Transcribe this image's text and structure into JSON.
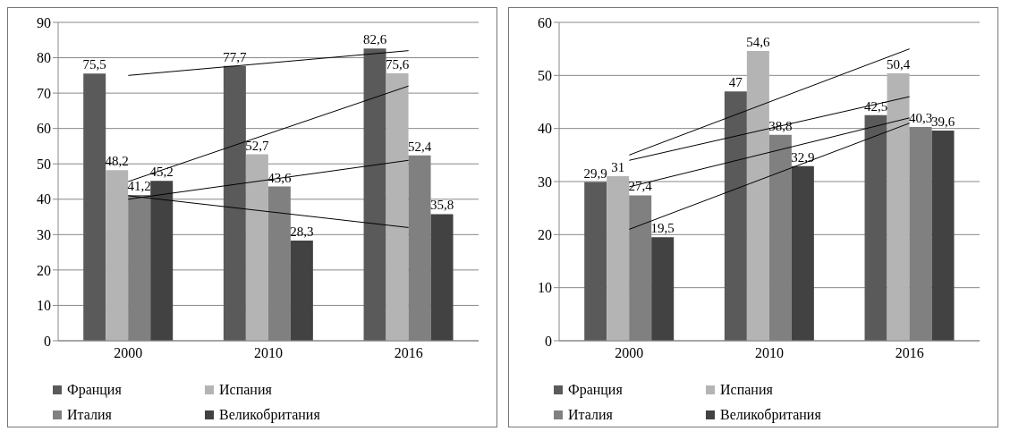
{
  "chart_data": [
    {
      "type": "bar",
      "categories": [
        "2000",
        "2010",
        "2016"
      ],
      "ylim": [
        0,
        90
      ],
      "yticks": [
        0,
        10,
        20,
        30,
        40,
        50,
        60,
        70,
        80,
        90
      ],
      "grid": "y",
      "legend": "bottom",
      "series": [
        {
          "name": "Франция",
          "color": "#5a5a5a",
          "values": [
            75.5,
            77.7,
            82.6
          ],
          "value_labels": [
            "75,5",
            "77,7",
            "82,6"
          ]
        },
        {
          "name": "Испания",
          "color": "#b4b4b4",
          "values": [
            48.2,
            52.7,
            75.6
          ],
          "value_labels": [
            "48,2",
            "52,7",
            "75,6"
          ]
        },
        {
          "name": "Италия",
          "color": "#808080",
          "values": [
            41.2,
            43.6,
            52.4
          ],
          "value_labels": [
            "41,2",
            "43,6",
            "52,4"
          ]
        },
        {
          "name": "Великобритания",
          "color": "#424242",
          "values": [
            45.2,
            28.3,
            35.8
          ],
          "value_labels": [
            "45,2",
            "28,3",
            "35,8"
          ]
        },
        {
          "type": "line",
          "color": "#000000",
          "values": [
            75,
            null,
            82
          ]
        },
        {
          "type": "line",
          "color": "#000000",
          "values": [
            45,
            null,
            72
          ]
        },
        {
          "type": "line",
          "color": "#000000",
          "values": [
            40,
            null,
            51
          ]
        },
        {
          "type": "line",
          "color": "#000000",
          "values": [
            41,
            null,
            32
          ]
        }
      ]
    },
    {
      "type": "bar",
      "categories": [
        "2000",
        "2010",
        "2016"
      ],
      "ylim": [
        0,
        60
      ],
      "yticks": [
        0,
        10,
        20,
        30,
        40,
        50,
        60
      ],
      "grid": "y",
      "legend": "bottom",
      "series": [
        {
          "name": "Франция",
          "color": "#5a5a5a",
          "values": [
            29.9,
            47,
            42.5
          ],
          "value_labels": [
            "29,9",
            "47",
            "42,5"
          ]
        },
        {
          "name": "Испания",
          "color": "#b4b4b4",
          "values": [
            31,
            54.6,
            50.4
          ],
          "value_labels": [
            "31",
            "54,6",
            "50,4"
          ]
        },
        {
          "name": "Италия",
          "color": "#808080",
          "values": [
            27.4,
            38.8,
            40.3
          ],
          "value_labels": [
            "27,4",
            "38,8",
            "40,3"
          ]
        },
        {
          "name": "Великобритания",
          "color": "#424242",
          "values": [
            19.5,
            32.9,
            39.6
          ],
          "value_labels": [
            "19,5",
            "32,9",
            "39,6"
          ]
        },
        {
          "type": "line",
          "color": "#000000",
          "values": [
            35,
            null,
            55
          ]
        },
        {
          "type": "line",
          "color": "#000000",
          "values": [
            34,
            null,
            46
          ]
        },
        {
          "type": "line",
          "color": "#000000",
          "values": [
            29,
            null,
            42
          ]
        },
        {
          "type": "line",
          "color": "#000000",
          "values": [
            21,
            null,
            41
          ]
        }
      ]
    }
  ]
}
